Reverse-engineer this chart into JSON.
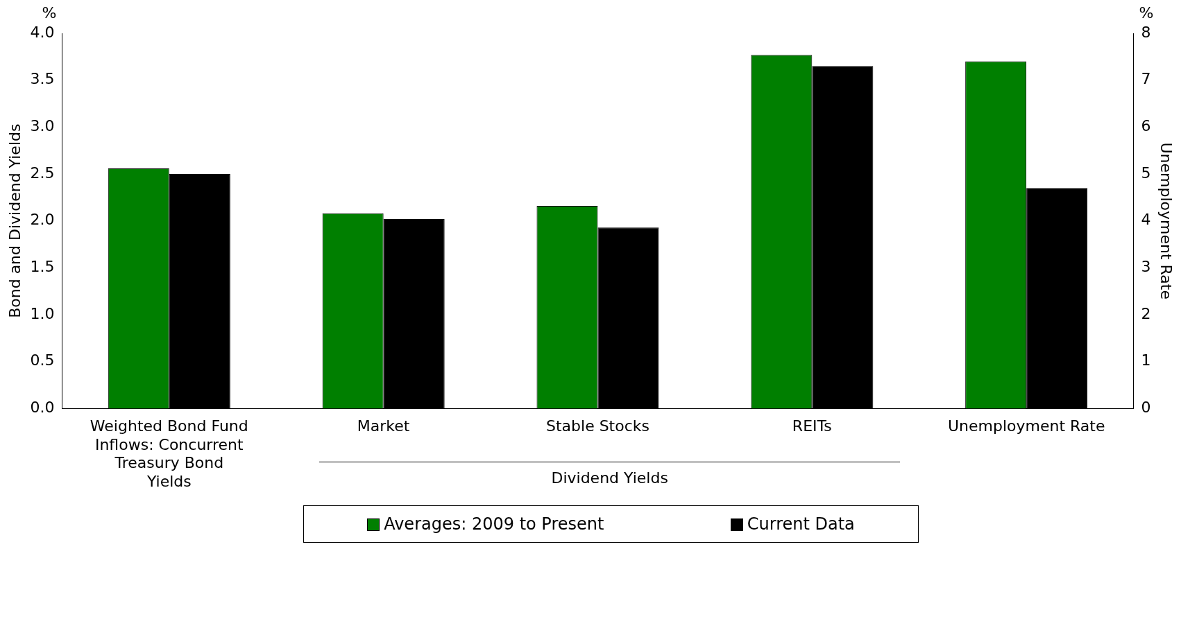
{
  "chart_data": {
    "type": "bar",
    "ylabel": "Bond and Dividend Yields",
    "y2label": "Unemployment Rate",
    "categories": [
      "Weighted Bond Fund Inflows: Concurrent Treasury Bond Yields",
      "Market",
      "Stable Stocks",
      "REITs",
      "Unemployment Rate"
    ],
    "series": [
      {
        "name": "Averages: 2009 to Present",
        "color": "#007f00",
        "values": [
          2.56,
          2.08,
          2.16,
          3.77,
          null
        ]
      },
      {
        "name": "Current Data",
        "color": "#000000",
        "values": [
          2.5,
          2.02,
          1.93,
          3.65,
          null
        ]
      },
      {
        "color": "#007f00",
        "axis": "y2",
        "values": [
          null,
          null,
          null,
          null,
          7.4
        ]
      },
      {
        "color": "#000000",
        "axis": "y2",
        "values": [
          null,
          null,
          null,
          null,
          4.7
        ]
      }
    ],
    "ylim": [
      0,
      4
    ],
    "yticks": [
      {
        "value": 0,
        "label": "0.0"
      },
      {
        "value": 0.5,
        "label": "0.5"
      },
      {
        "value": 1,
        "label": "1.0"
      },
      {
        "value": 1.5,
        "label": "1.5"
      },
      {
        "value": 2,
        "label": "2.0"
      },
      {
        "value": 2.5,
        "label": "2.5"
      },
      {
        "value": 3,
        "label": "3.0"
      },
      {
        "value": 3.5,
        "label": "3.5"
      },
      {
        "value": 4,
        "label": "4.0"
      }
    ],
    "y2lim": [
      0,
      8
    ],
    "y2ticks": [
      0,
      1,
      2,
      3,
      4,
      5,
      6,
      7,
      8
    ],
    "annotations": [
      "%",
      "%",
      "Dividend Yields"
    ],
    "grid": false,
    "legend": "bottom"
  }
}
